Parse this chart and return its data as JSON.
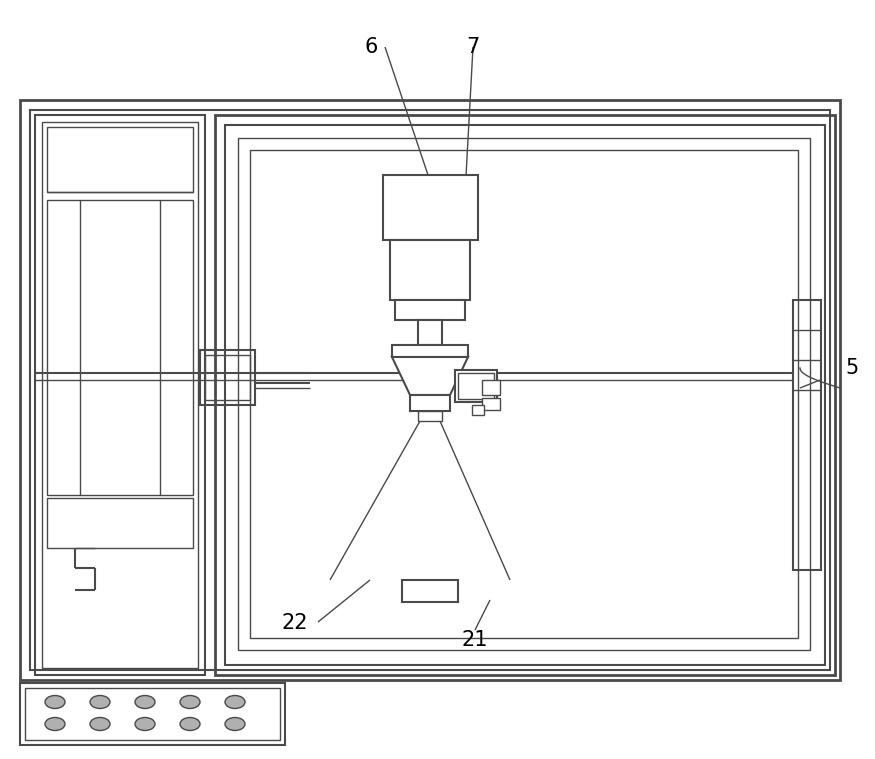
{
  "bg_color": "#ffffff",
  "lc": "#4a4a4a",
  "lw_outer": 2.0,
  "lw_mid": 1.5,
  "lw_thin": 1.0,
  "fig_width": 8.75,
  "fig_height": 7.59,
  "label_fontsize": 15
}
